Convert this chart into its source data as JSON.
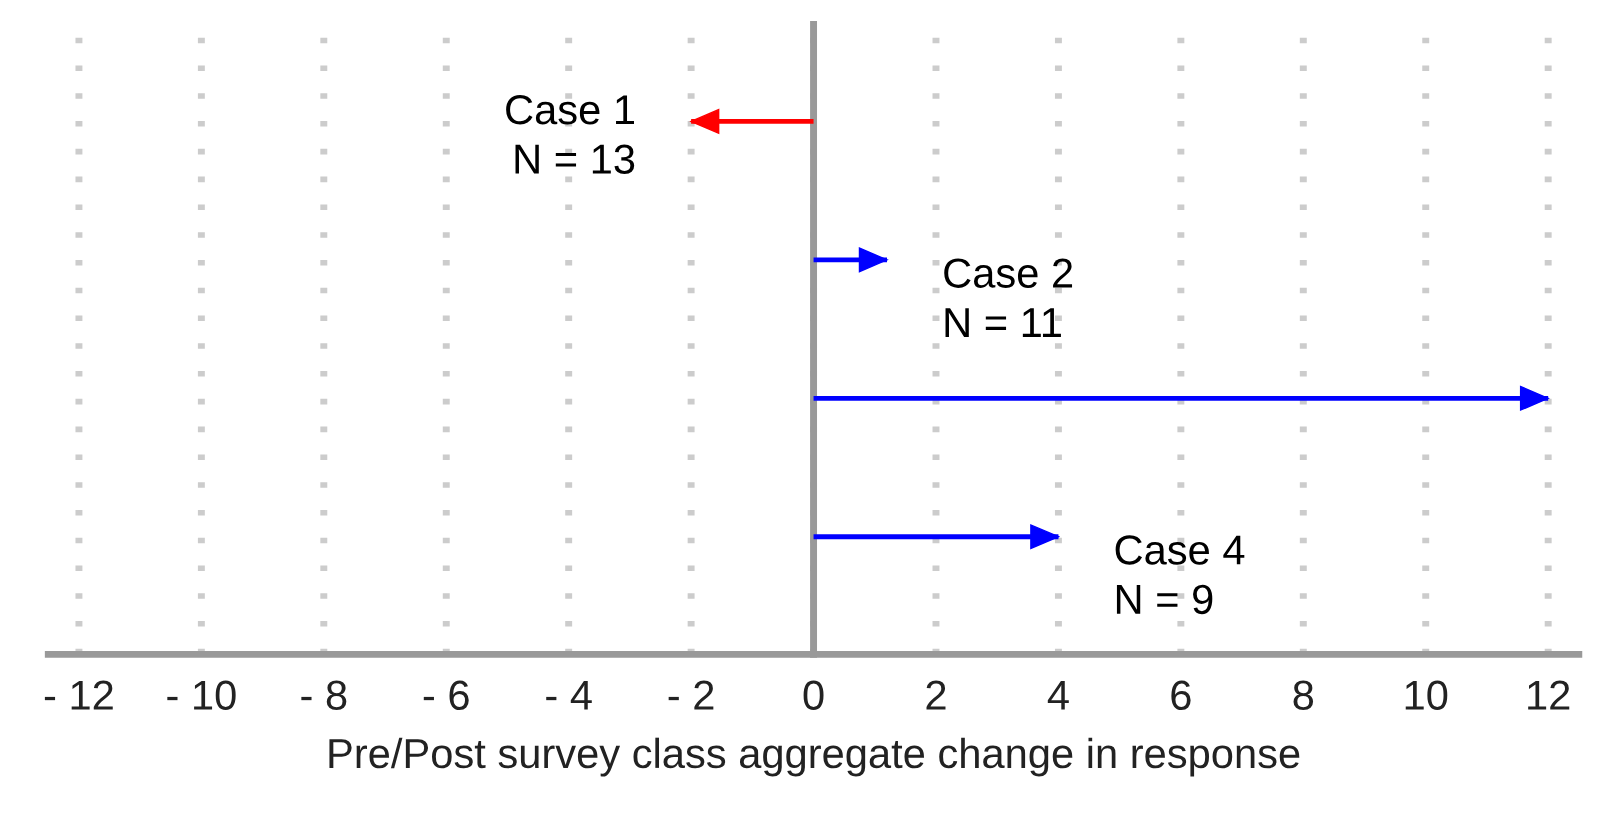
{
  "chart_data": {
    "type": "bar",
    "orientation": "horizontal",
    "xlabel": "Pre/Post survey class aggregate change in response",
    "categories": [
      null,
      null,
      null,
      null
    ],
    "values": [
      -2,
      1.2,
      12,
      4
    ],
    "colors": [
      "#ff0000",
      "#0000ff",
      "#0000ff",
      "#0000ff"
    ],
    "value_labels": [
      "Case 1\nN = 13",
      "Case 2\nN = 11",
      null,
      "Case 4\nN = 9"
    ],
    "xlim": [
      -12.5,
      12.5
    ],
    "xticks": [
      {
        "value": -12,
        "label": "- 12"
      },
      {
        "value": -10,
        "label": "- 10"
      },
      {
        "value": -8,
        "label": "- 8"
      },
      {
        "value": -6,
        "label": "- 6"
      },
      {
        "value": -4,
        "label": "- 4"
      },
      {
        "value": -2,
        "label": "- 2"
      },
      0,
      2,
      4,
      6,
      8,
      10,
      12
    ],
    "grid": "x",
    "tick_labels": "x"
  }
}
